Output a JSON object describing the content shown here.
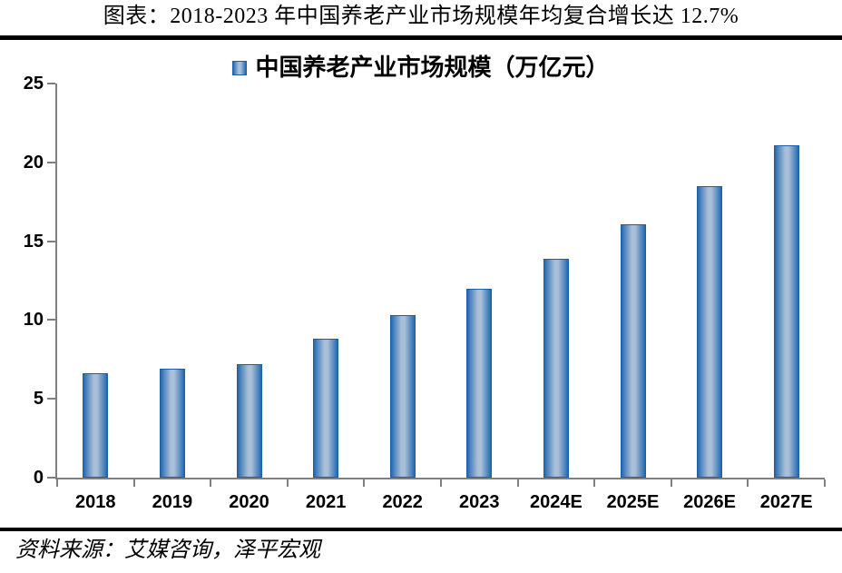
{
  "header": {
    "title": "图表：2018-2023 年中国养老产业市场规模年均复合增长达 12.7%"
  },
  "chart_data": {
    "type": "bar",
    "title": "图表：2018-2023 年中国养老产业市场规模年均复合增长达 12.7%",
    "legend": "中国养老产业市场规模（万亿元）",
    "legend_position": "top-center",
    "categories": [
      "2018",
      "2019",
      "2020",
      "2021",
      "2022",
      "2023",
      "2024E",
      "2025E",
      "2026E",
      "2027E"
    ],
    "values": [
      6.6,
      6.9,
      7.2,
      8.8,
      10.3,
      12.0,
      13.9,
      16.1,
      18.5,
      21.1
    ],
    "xlabel": "",
    "ylabel": "",
    "ylim": [
      0,
      25
    ],
    "yticks": [
      0,
      5,
      10,
      15,
      20,
      25
    ],
    "grid": false
  },
  "footer": {
    "source": "资料来源：艾媒咨询，泽平宏观"
  },
  "colors": {
    "bar_edge": "#2268B0",
    "bar_mid": "#4A82BE",
    "bar_center": "#A9BFD7",
    "bar_border": "#1C5FA7",
    "axis": "#7F7F7F",
    "rule": "#000000",
    "text": "#000000"
  }
}
